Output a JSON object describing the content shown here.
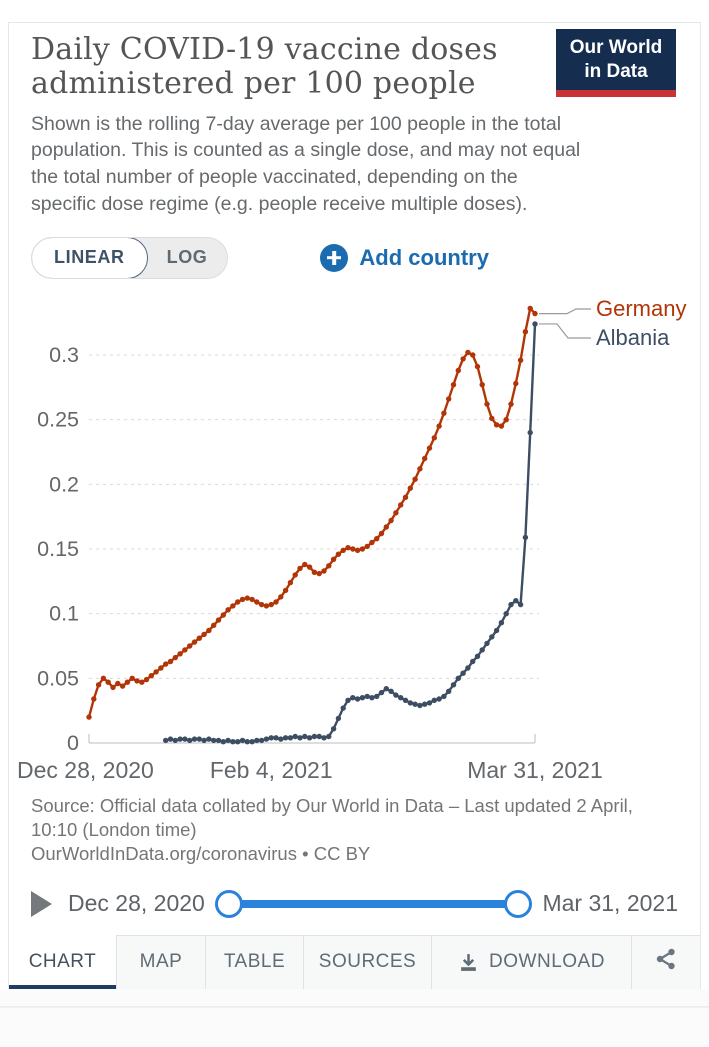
{
  "header": {
    "title_lines": [
      "Daily COVID-19 vaccine doses",
      "administered per 100 people"
    ],
    "subtitle_lines": [
      "Shown is the rolling 7-day average per 100 people in the total",
      "population. This is counted as a single dose, and may not equal",
      "the total number of people vaccinated, depending on the",
      "specific dose regime (e.g. people receive multiple doses)."
    ],
    "logo_lines": [
      "Our World",
      "in Data"
    ]
  },
  "controls": {
    "linear_label": "LINEAR",
    "log_label": "LOG",
    "add_country_label": "Add country"
  },
  "chart_data": {
    "type": "line",
    "title": "Daily COVID-19 vaccine doses administered per 100 people",
    "x_axis": {
      "tick_labels": [
        "Dec 28, 2020",
        "Feb 4, 2021",
        "Mar 31, 2021"
      ],
      "tick_days": [
        0,
        38,
        93
      ],
      "start_date": "Dec 28, 2020",
      "end_date": "Mar 31, 2021",
      "unit": "days since Dec 28, 2020"
    },
    "y_axis": {
      "ticks": [
        0,
        0.05,
        0.1,
        0.15,
        0.2,
        0.25,
        0.3
      ],
      "range": [
        0,
        0.345
      ],
      "gridlines": "dashed"
    },
    "legend_position": "end-of-line",
    "series": [
      {
        "name": "Germany",
        "color": "#b13507",
        "start_day": 0,
        "values": [
          0.02,
          0.034,
          0.045,
          0.05,
          0.047,
          0.043,
          0.046,
          0.044,
          0.047,
          0.05,
          0.048,
          0.047,
          0.049,
          0.052,
          0.055,
          0.058,
          0.061,
          0.063,
          0.066,
          0.069,
          0.072,
          0.075,
          0.078,
          0.081,
          0.084,
          0.087,
          0.091,
          0.095,
          0.099,
          0.103,
          0.106,
          0.109,
          0.111,
          0.112,
          0.111,
          0.109,
          0.107,
          0.106,
          0.107,
          0.109,
          0.113,
          0.118,
          0.124,
          0.13,
          0.135,
          0.138,
          0.136,
          0.132,
          0.131,
          0.133,
          0.137,
          0.142,
          0.146,
          0.149,
          0.151,
          0.15,
          0.149,
          0.15,
          0.152,
          0.155,
          0.158,
          0.162,
          0.167,
          0.172,
          0.178,
          0.184,
          0.19,
          0.197,
          0.204,
          0.212,
          0.22,
          0.228,
          0.236,
          0.245,
          0.255,
          0.266,
          0.277,
          0.288,
          0.297,
          0.302,
          0.3,
          0.291,
          0.277,
          0.262,
          0.251,
          0.246,
          0.245,
          0.25,
          0.262,
          0.278,
          0.296,
          0.318,
          0.336,
          0.332
        ]
      },
      {
        "name": "Albania",
        "color": "#3d4e63",
        "start_day": 16,
        "values": [
          0.002,
          0.003,
          0.002,
          0.003,
          0.003,
          0.002,
          0.003,
          0.003,
          0.002,
          0.003,
          0.002,
          0.002,
          0.001,
          0.002,
          0.001,
          0.001,
          0.002,
          0.001,
          0.001,
          0.002,
          0.002,
          0.003,
          0.004,
          0.004,
          0.003,
          0.004,
          0.004,
          0.005,
          0.004,
          0.005,
          0.004,
          0.005,
          0.005,
          0.004,
          0.005,
          0.011,
          0.019,
          0.027,
          0.033,
          0.035,
          0.034,
          0.035,
          0.036,
          0.035,
          0.036,
          0.039,
          0.042,
          0.04,
          0.037,
          0.035,
          0.033,
          0.031,
          0.03,
          0.029,
          0.03,
          0.031,
          0.033,
          0.034,
          0.036,
          0.04,
          0.045,
          0.05,
          0.054,
          0.058,
          0.063,
          0.067,
          0.072,
          0.077,
          0.082,
          0.087,
          0.093,
          0.1,
          0.107,
          0.11,
          0.107,
          0.159,
          0.24,
          0.324
        ]
      }
    ]
  },
  "source": {
    "lines": [
      "Source: Official data collated by Our World in Data – Last updated 2 April,",
      "10:10 (London time)",
      "OurWorldInData.org/coronavirus • CC BY"
    ]
  },
  "timeline": {
    "start_label": "Dec 28, 2020",
    "end_label": "Mar 31, 2021"
  },
  "tabs": [
    {
      "label": "CHART",
      "active": true
    },
    {
      "label": "MAP",
      "active": false
    },
    {
      "label": "TABLE",
      "active": false
    },
    {
      "label": "SOURCES",
      "active": false
    },
    {
      "label": "DOWNLOAD",
      "active": false
    }
  ],
  "colors": {
    "germany": "#b13507",
    "albania": "#3d4e63",
    "accent_blue": "#1a6bb0",
    "slider_blue": "#2a82da",
    "logo_bg": "#152e4f",
    "logo_red": "#ca3335",
    "tab_active_underline": "#1d3d63",
    "grid_gray": "#d9d9d9",
    "text_gray": "#666666"
  }
}
